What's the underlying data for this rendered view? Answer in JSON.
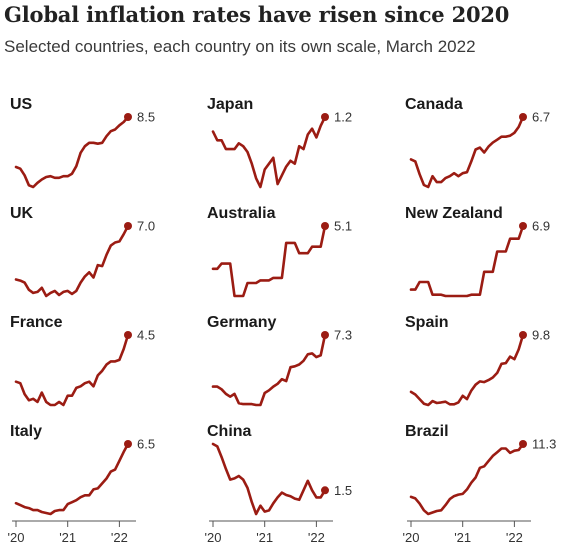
{
  "header": {
    "title": "Global inflation rates have risen since 2020",
    "subtitle": "Selected countries, each country on its own scale, March 2022"
  },
  "colors": {
    "line": "#9b1c13",
    "axis": "#555555"
  },
  "chart_data": {
    "type": "line",
    "title": "Global inflation rates have risen since 2020",
    "subtitle": "Selected countries, each country on its own scale, March 2022",
    "x_ticks": [
      "'20",
      "'21",
      "'22"
    ],
    "x_range": [
      "2020-01",
      "2022-03"
    ],
    "series": [
      {
        "name": "US",
        "final_value": "8.5",
        "values": [
          2.5,
          2.3,
          1.5,
          0.3,
          0.1,
          0.6,
          1.0,
          1.3,
          1.4,
          1.2,
          1.2,
          1.4,
          1.4,
          1.7,
          2.6,
          4.2,
          5.0,
          5.4,
          5.4,
          5.3,
          5.4,
          6.2,
          6.8,
          7.0,
          7.5,
          7.9,
          8.5
        ]
      },
      {
        "name": "Japan",
        "final_value": "1.2",
        "values": [
          0.7,
          0.4,
          0.4,
          0.1,
          0.1,
          0.1,
          0.3,
          0.2,
          0.0,
          -0.4,
          -0.9,
          -1.2,
          -0.6,
          -0.4,
          -0.2,
          -1.1,
          -0.8,
          -0.5,
          -0.3,
          -0.4,
          0.2,
          0.1,
          0.6,
          0.8,
          0.5,
          0.9,
          1.2
        ]
      },
      {
        "name": "Canada",
        "final_value": "6.7",
        "values": [
          2.4,
          2.2,
          0.9,
          -0.2,
          -0.4,
          0.7,
          0.1,
          0.1,
          0.5,
          0.7,
          1.0,
          0.7,
          1.0,
          1.1,
          2.2,
          3.4,
          3.6,
          3.1,
          3.7,
          4.1,
          4.4,
          4.7,
          4.7,
          4.8,
          5.1,
          5.7,
          6.7
        ]
      },
      {
        "name": "UK",
        "final_value": "7.0",
        "values": [
          1.8,
          1.7,
          1.5,
          0.8,
          0.5,
          0.6,
          1.0,
          0.2,
          0.5,
          0.7,
          0.3,
          0.6,
          0.7,
          0.4,
          0.7,
          1.5,
          2.1,
          2.5,
          2.0,
          3.2,
          3.1,
          4.2,
          5.1,
          5.4,
          5.5,
          6.2,
          7.0
        ]
      },
      {
        "name": "Australia",
        "final_value": "5.1",
        "values": [
          1.8,
          1.8,
          2.2,
          2.2,
          2.2,
          -0.3,
          -0.3,
          -0.3,
          0.7,
          0.7,
          0.7,
          0.9,
          0.9,
          0.9,
          1.1,
          1.1,
          1.1,
          3.8,
          3.8,
          3.8,
          3.0,
          3.0,
          3.0,
          3.5,
          3.5,
          3.5,
          5.1
        ]
      },
      {
        "name": "New Zealand",
        "final_value": "6.9",
        "values": [
          1.9,
          1.9,
          2.5,
          2.5,
          2.5,
          1.5,
          1.5,
          1.5,
          1.4,
          1.4,
          1.4,
          1.4,
          1.4,
          1.4,
          1.5,
          1.5,
          1.5,
          3.3,
          3.3,
          3.3,
          4.9,
          4.9,
          4.9,
          5.9,
          5.9,
          5.9,
          6.9
        ]
      },
      {
        "name": "France",
        "final_value": "4.5",
        "values": [
          1.5,
          1.4,
          0.7,
          0.3,
          0.4,
          0.2,
          0.8,
          0.2,
          0.0,
          0.0,
          0.2,
          0.0,
          0.6,
          0.6,
          1.1,
          1.2,
          1.4,
          1.5,
          1.2,
          1.9,
          2.2,
          2.6,
          2.8,
          2.8,
          2.9,
          3.6,
          4.5
        ]
      },
      {
        "name": "Germany",
        "final_value": "7.3",
        "values": [
          1.7,
          1.7,
          1.4,
          0.9,
          0.6,
          0.9,
          -0.1,
          -0.2,
          -0.2,
          -0.2,
          -0.3,
          -0.3,
          1.0,
          1.3,
          1.7,
          2.0,
          2.5,
          2.3,
          3.8,
          3.9,
          4.1,
          4.5,
          5.2,
          5.3,
          4.9,
          5.1,
          7.3
        ]
      },
      {
        "name": "Spain",
        "final_value": "9.8",
        "values": [
          1.1,
          0.7,
          0.0,
          -0.7,
          -0.9,
          -0.3,
          -0.6,
          -0.5,
          -0.4,
          -0.8,
          -0.8,
          -0.5,
          0.5,
          0.0,
          1.3,
          2.2,
          2.7,
          2.6,
          2.9,
          3.3,
          4.0,
          5.4,
          5.5,
          6.5,
          6.1,
          7.6,
          9.8
        ]
      },
      {
        "name": "Italy",
        "final_value": "6.5",
        "values": [
          0.5,
          0.3,
          0.1,
          0.0,
          -0.2,
          -0.2,
          -0.4,
          -0.5,
          -0.6,
          -0.3,
          -0.2,
          -0.2,
          0.4,
          0.6,
          0.8,
          1.1,
          1.3,
          1.3,
          1.9,
          2.0,
          2.5,
          3.0,
          3.7,
          3.9,
          4.8,
          5.7,
          6.5
        ]
      },
      {
        "name": "China",
        "final_value": "1.5",
        "values": [
          5.4,
          5.2,
          4.3,
          3.3,
          2.4,
          2.5,
          2.7,
          2.4,
          1.7,
          0.5,
          -0.5,
          0.2,
          -0.3,
          -0.2,
          0.4,
          0.9,
          1.3,
          1.1,
          1.0,
          0.8,
          0.7,
          1.5,
          2.3,
          1.5,
          0.9,
          0.9,
          1.5
        ]
      },
      {
        "name": "Brazil",
        "final_value": "11.3",
        "values": [
          4.2,
          4.0,
          3.3,
          2.4,
          1.9,
          2.1,
          2.3,
          2.4,
          3.1,
          3.9,
          4.3,
          4.5,
          4.6,
          5.2,
          6.1,
          6.8,
          8.1,
          8.3,
          9.0,
          9.7,
          10.2,
          10.7,
          10.7,
          10.1,
          10.4,
          10.5,
          11.3
        ]
      }
    ]
  }
}
